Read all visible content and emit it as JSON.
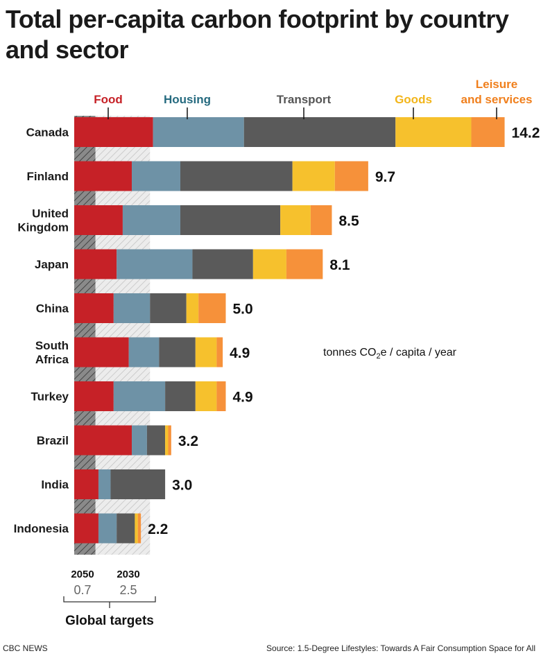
{
  "title": "Total per-capita carbon footprint by country and sector",
  "credit": "CBC NEWS",
  "source": "Source: 1.5-Degree Lifestyles: Towards A Fair Consumption Space for All",
  "chart_data": {
    "type": "bar",
    "orientation": "horizontal",
    "stacked": true,
    "unit_label": "tonnes CO",
    "unit_sub": "2",
    "unit_suffix": "e / capita / year",
    "categories": [
      "Canada",
      "Finland",
      "United Kingdom",
      "Japan",
      "China",
      "South Africa",
      "Turkey",
      "Brazil",
      "India",
      "Indonesia"
    ],
    "category_lines": [
      [
        "Canada"
      ],
      [
        "Finland"
      ],
      [
        "United",
        "Kingdom"
      ],
      [
        "Japan"
      ],
      [
        "China"
      ],
      [
        "South",
        "Africa"
      ],
      [
        "Turkey"
      ],
      [
        "Brazil"
      ],
      [
        "India"
      ],
      [
        "Indonesia"
      ]
    ],
    "totals": [
      "14.2",
      "9.7",
      "8.5",
      "8.1",
      "5.0",
      "4.9",
      "4.9",
      "3.2",
      "3.0",
      "2.2"
    ],
    "series": [
      {
        "name": "Food",
        "name_lines": [
          "Food"
        ],
        "color": "#c62127",
        "values": [
          2.6,
          1.9,
          1.6,
          1.4,
          1.3,
          1.8,
          1.3,
          1.9,
          0.8,
          0.8
        ]
      },
      {
        "name": "Housing",
        "name_lines": [
          "Housing"
        ],
        "color": "#6e92a6",
        "values": [
          3.0,
          1.6,
          1.9,
          2.5,
          1.2,
          1.0,
          1.7,
          0.5,
          0.4,
          0.6
        ]
      },
      {
        "name": "Transport",
        "name_lines": [
          "Transport"
        ],
        "color": "#5a5a5a",
        "values": [
          5.0,
          3.7,
          3.3,
          2.0,
          1.2,
          1.2,
          1.0,
          0.6,
          1.8,
          0.6
        ]
      },
      {
        "name": "Goods",
        "name_lines": [
          "Goods"
        ],
        "color": "#f6c12d",
        "values": [
          2.5,
          1.4,
          1.0,
          1.1,
          0.4,
          0.7,
          0.7,
          0.1,
          0.0,
          0.1
        ]
      },
      {
        "name": "Leisure and services",
        "name_lines": [
          "Leisure",
          "and services"
        ],
        "color": "#f6913a",
        "values": [
          1.1,
          1.1,
          0.7,
          1.2,
          0.9,
          0.2,
          0.3,
          0.1,
          0.0,
          0.1
        ]
      }
    ],
    "legend_colors": [
      "#c62127",
      "#256a7f",
      "#555555",
      "#f2b51a",
      "#f07f1c"
    ],
    "targets": {
      "title": "Global targets",
      "items": [
        {
          "year": "2050",
          "value": "0.7"
        },
        {
          "year": "2030",
          "value": "2.5"
        }
      ]
    }
  }
}
